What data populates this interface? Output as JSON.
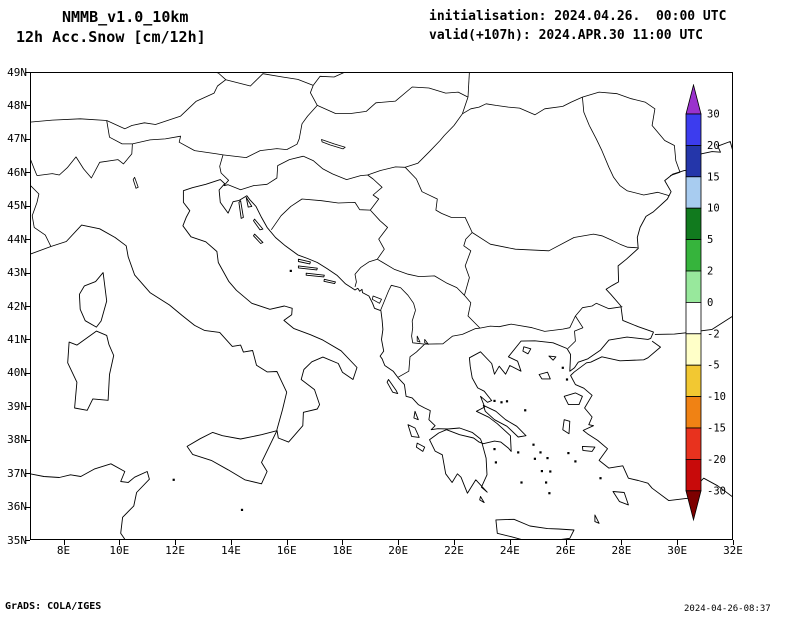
{
  "header": {
    "model_title": "NMMB_v1.0_10km",
    "field_title": "12h Acc.Snow [cm/12h]",
    "init_line": "initialisation: 2024.04.26.  00:00 UTC",
    "valid_line": "valid(+107h): 2024.APR.30 11:00 UTC"
  },
  "map": {
    "lat_ticks": [
      "49N",
      "48N",
      "47N",
      "46N",
      "45N",
      "44N",
      "43N",
      "42N",
      "41N",
      "40N",
      "39N",
      "38N",
      "37N",
      "36N",
      "35N"
    ],
    "lon_ticks": [
      "8E",
      "10E",
      "12E",
      "14E",
      "16E",
      "18E",
      "20E",
      "22E",
      "24E",
      "26E",
      "28E",
      "30E",
      "32E"
    ],
    "lat_range": [
      35,
      49
    ],
    "lon_range": [
      6.8,
      32
    ]
  },
  "colorbar": {
    "levels": [
      "30",
      "20",
      "15",
      "10",
      "5",
      "2",
      "0",
      "-2",
      "-5",
      "-10",
      "-15",
      "-20",
      "-30"
    ],
    "colors": [
      "#9a32cd",
      "#3c3cee",
      "#2436aa",
      "#a8ccf0",
      "#117a1e",
      "#36b43c",
      "#98e89c",
      "#ffffff",
      "#ffffc8",
      "#f2c832",
      "#f08214",
      "#e8321e",
      "#c80a0a",
      "#7d0000"
    ]
  },
  "footer": {
    "credit": "GrADS: COLA/IGES",
    "timestamp": "2024-04-26-08:37"
  }
}
